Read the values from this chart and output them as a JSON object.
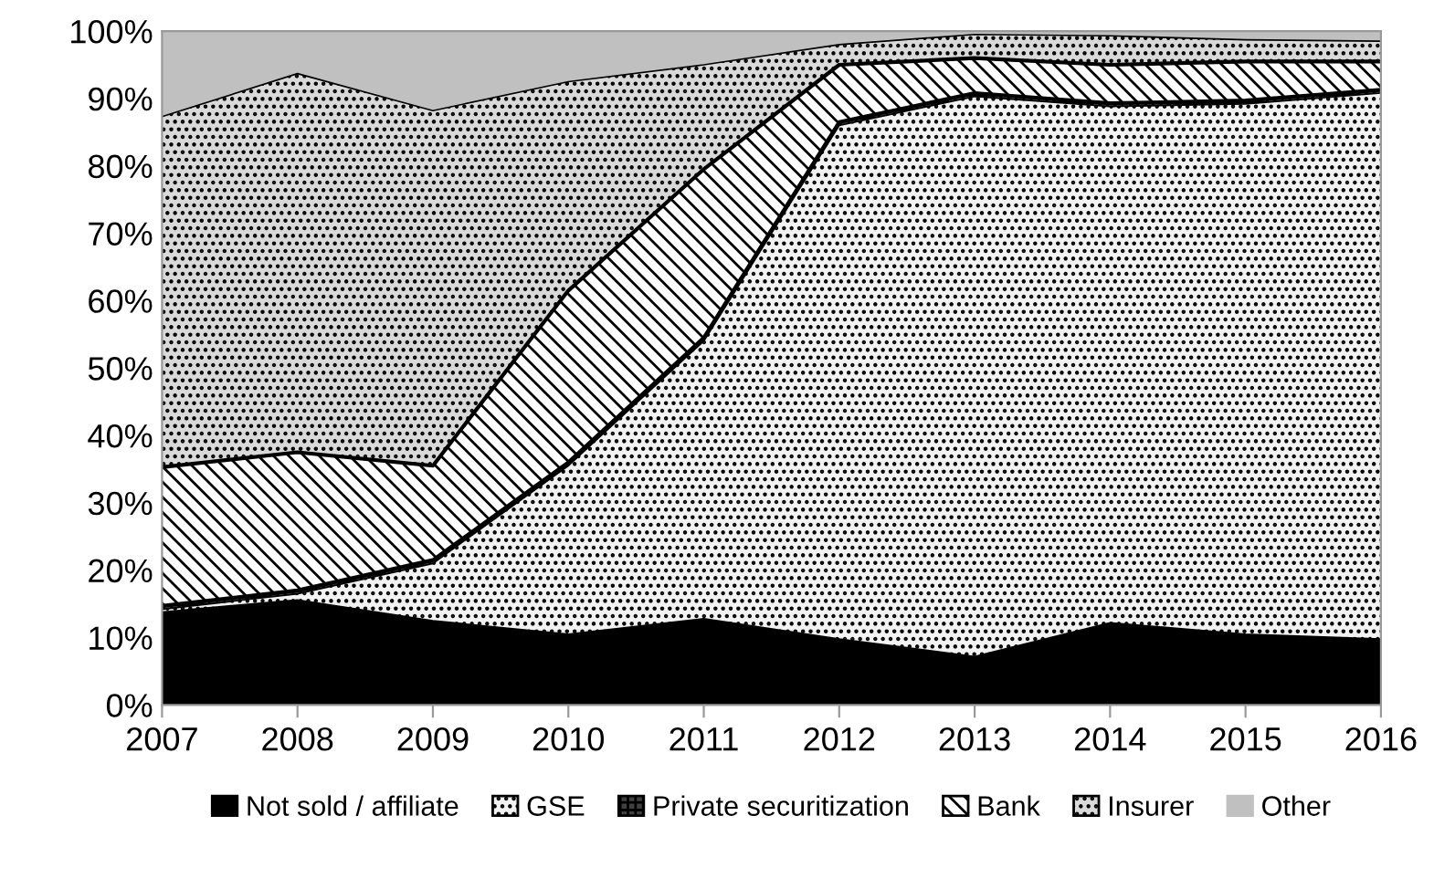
{
  "chart_data": {
    "type": "area",
    "stacked": true,
    "categories": [
      "2007",
      "2008",
      "2009",
      "2010",
      "2011",
      "2012",
      "2013",
      "2014",
      "2015",
      "2016"
    ],
    "series": [
      {
        "name": "Not sold / affiliate",
        "color": "#000000",
        "values": [
          13.8,
          15.6,
          12.5,
          10.5,
          12.8,
          9.8,
          7.2,
          12.2,
          10.5,
          9.8
        ]
      },
      {
        "name": "GSE",
        "color": "#f2f2f2",
        "values": [
          0.4,
          0.9,
          8.5,
          25.0,
          41.2,
          76.2,
          83.1,
          76.6,
          78.7,
          81.0
        ]
      },
      {
        "name": "Private securitization",
        "color": "#404040",
        "values": [
          0.5,
          0.5,
          0.5,
          0.5,
          0.5,
          0.5,
          0.5,
          0.5,
          0.5,
          0.5
        ]
      },
      {
        "name": "Bank",
        "color": "#ffffff",
        "values": [
          20.6,
          20.5,
          14.0,
          25.5,
          25.0,
          8.5,
          5.2,
          5.7,
          5.8,
          4.2
        ]
      },
      {
        "name": "Insurer",
        "color": "#d9d9d9",
        "values": [
          52.0,
          56.2,
          52.7,
          31.0,
          15.5,
          3.0,
          3.5,
          4.3,
          3.2,
          3.0
        ]
      },
      {
        "name": "Other",
        "color": "#c0c0c0",
        "values": [
          12.7,
          6.3,
          11.8,
          7.5,
          5.0,
          2.0,
          0.5,
          0.7,
          1.3,
          1.5
        ]
      }
    ],
    "ylim": [
      0,
      100
    ],
    "yticks": [
      {
        "value": 0,
        "label": "0%"
      },
      {
        "value": 10,
        "label": "10%"
      },
      {
        "value": 20,
        "label": "20%"
      },
      {
        "value": 30,
        "label": "30%"
      },
      {
        "value": 40,
        "label": "40%"
      },
      {
        "value": 50,
        "label": "50%"
      },
      {
        "value": 60,
        "label": "60%"
      },
      {
        "value": 70,
        "label": "70%"
      },
      {
        "value": 80,
        "label": "80%"
      },
      {
        "value": 90,
        "label": "90%"
      },
      {
        "value": 100,
        "label": "100%"
      }
    ],
    "grid": false,
    "legend": "bottom"
  }
}
